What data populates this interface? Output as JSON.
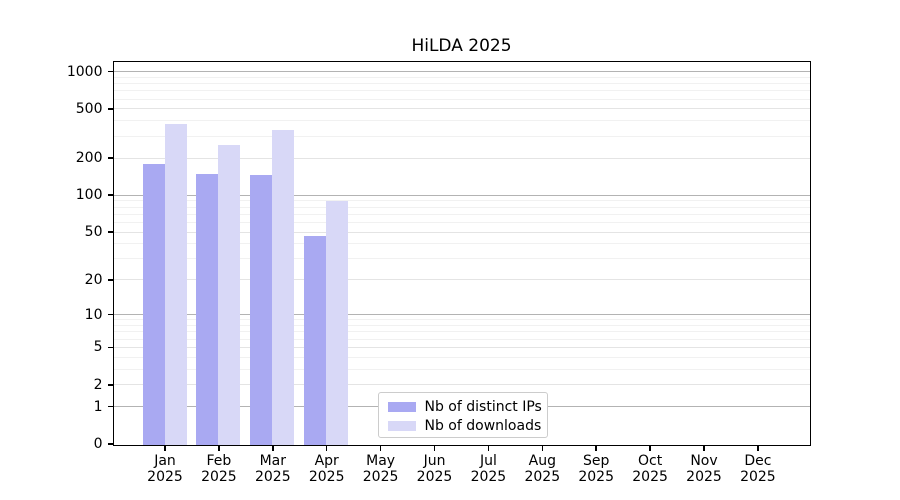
{
  "title": "HiLDA 2025",
  "chart_data": {
    "type": "bar",
    "title": "HiLDA 2025",
    "xlabel": "",
    "ylabel": "",
    "yscale": "log1p (symlog-like)",
    "grid": "horizontal major + minor gridlines",
    "legend_position": "lower center",
    "ylim": [
      0,
      1200
    ],
    "yticks": [
      0,
      1,
      2,
      5,
      10,
      20,
      50,
      100,
      200,
      500,
      1000
    ],
    "year": "2025",
    "months": [
      "Jan",
      "Feb",
      "Mar",
      "Apr",
      "May",
      "Jun",
      "Jul",
      "Aug",
      "Sep",
      "Oct",
      "Nov",
      "Dec"
    ],
    "categories": [
      "Jan 2025",
      "Feb 2025",
      "Mar 2025",
      "Apr 2025",
      "May 2025",
      "Jun 2025",
      "Jul 2025",
      "Aug 2025",
      "Sep 2025",
      "Oct 2025",
      "Nov 2025",
      "Dec 2025"
    ],
    "series": [
      {
        "name": "Nb of distinct IPs",
        "color": "#a9a9f2",
        "values": [
          181,
          150,
          146,
          47,
          0,
          0,
          0,
          0,
          0,
          0,
          0,
          0
        ]
      },
      {
        "name": "Nb of downloads",
        "color": "#d8d8f7",
        "values": [
          378,
          257,
          338,
          91,
          0,
          0,
          0,
          0,
          0,
          0,
          0,
          0
        ]
      }
    ],
    "colors": {
      "decade_gridline": "#b3b3b3",
      "labeled_gridline": "#e4e4e4",
      "minor_gridline": "#f1f1f1",
      "axis": "#000000",
      "legend_border": "#cccccc"
    }
  }
}
